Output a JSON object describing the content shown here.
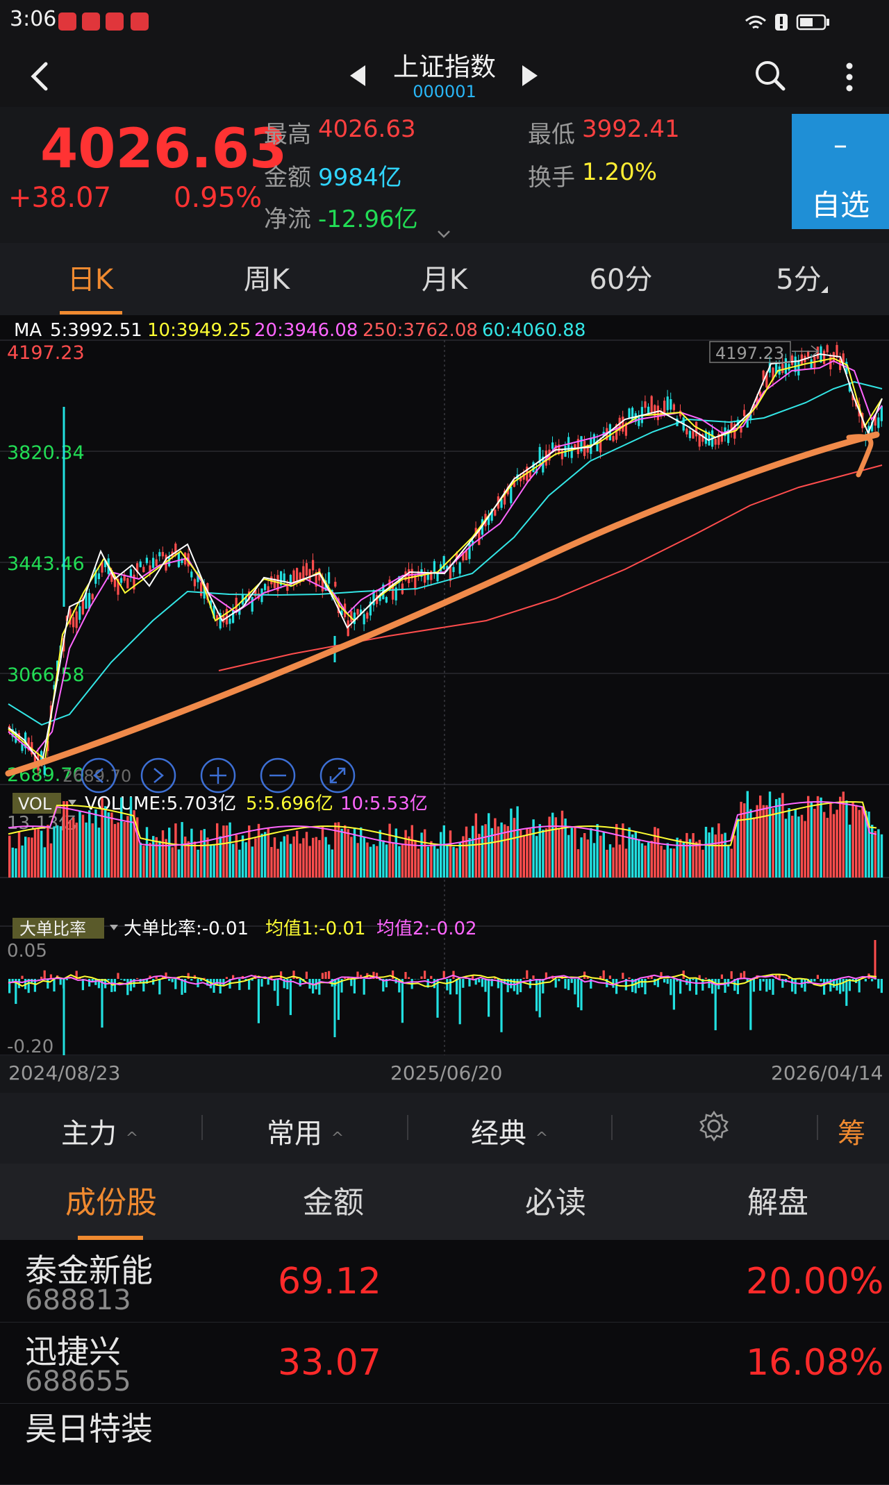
{
  "status": {
    "time": "3:06"
  },
  "header": {
    "title": "上证指数",
    "code": "000001"
  },
  "quote": {
    "price": "4026.63",
    "change": "+38.07",
    "change_pct": "0.95%",
    "high_label": "最高",
    "high_value": "4026.63",
    "low_label": "最低",
    "low_value": "3992.41",
    "amount_label": "金额",
    "amount_value": "9984亿",
    "turnover_label": "换手",
    "turnover_value": "1.20%",
    "netflow_label": "净流",
    "netflow_value": "-12.96亿",
    "watch_minus": "–",
    "watch_label": "自选"
  },
  "ktabs": [
    "日K",
    "周K",
    "月K",
    "60分",
    "5分"
  ],
  "chart": {
    "ma_legend": {
      "ma_label": "MA",
      "ma5": "5:3992.51",
      "ma10": "10:3949.25",
      "ma20": "20:3946.08",
      "ma250": "250:3762.08",
      "ma60": "60:4060.88"
    },
    "price_ticks": [
      "4197.23",
      "3820.34",
      "3443.46",
      "3066.58",
      "2689.70"
    ],
    "max_tag": "4197.23",
    "min_tag": "2689.70",
    "vol_tag": "VOL",
    "vol_legend": {
      "volume": "VOLUME:5.703亿",
      "v5": "5:5.696亿",
      "v10": "10:5.53亿"
    },
    "vol_max": "13.13亿",
    "ratio_tag": "大单比率",
    "ratio_legend": {
      "ratio": "大单比率:-0.01",
      "avg1": "均值1:-0.01",
      "avg2": "均值2:-0.02"
    },
    "ratio_ticks": [
      "0.05",
      "-0.20"
    ],
    "dates": [
      "2024/08/23",
      "2025/06/20",
      "2026/04/14"
    ],
    "colors": {
      "up": "#ff4d4d",
      "down": "#22e0e0",
      "ma5": "#ffffff",
      "ma10": "#ffff33",
      "ma20": "#ff66ff",
      "ma60": "#33e6e6",
      "ma250": "#ff4d4d",
      "annotation": "#f08a4a"
    }
  },
  "toolbar": {
    "main": "主力",
    "common": "常用",
    "classic": "经典",
    "chip": "筹"
  },
  "stock_tabs": [
    "成份股",
    "金额",
    "必读",
    "解盘"
  ],
  "stocks": [
    {
      "name": "泰金新能",
      "code": "688813",
      "price": "69.12",
      "pct": "20.00%"
    },
    {
      "name": "迅捷兴",
      "code": "688655",
      "price": "33.07",
      "pct": "16.08%"
    },
    {
      "name": "昊日特装",
      "code": "",
      "price": "",
      "pct": ""
    }
  ]
}
